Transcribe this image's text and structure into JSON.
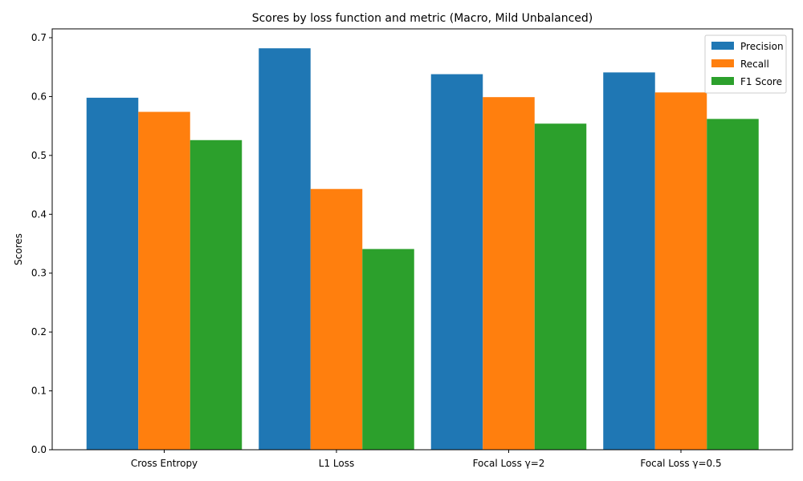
{
  "chart_data": {
    "type": "bar",
    "title": "Scores by loss function and metric (Macro, Mild Unbalanced)",
    "xlabel": "",
    "ylabel": "Scores",
    "categories": [
      "Cross Entropy",
      "L1 Loss",
      "Focal Loss γ=2",
      "Focal Loss γ=0.5"
    ],
    "series": [
      {
        "name": "Precision",
        "color": "#1f77b4",
        "values": [
          0.598,
          0.682,
          0.638,
          0.641
        ]
      },
      {
        "name": "Recall",
        "color": "#ff7f0e",
        "values": [
          0.574,
          0.443,
          0.599,
          0.607
        ]
      },
      {
        "name": "F1 Score",
        "color": "#2ca02c",
        "values": [
          0.526,
          0.341,
          0.554,
          0.562
        ]
      }
    ],
    "ylim": [
      0,
      0.715
    ],
    "yticks": [
      "0.0",
      "0.1",
      "0.2",
      "0.3",
      "0.4",
      "0.5",
      "0.6",
      "0.7"
    ],
    "legend": "top-right",
    "grid": false
  }
}
